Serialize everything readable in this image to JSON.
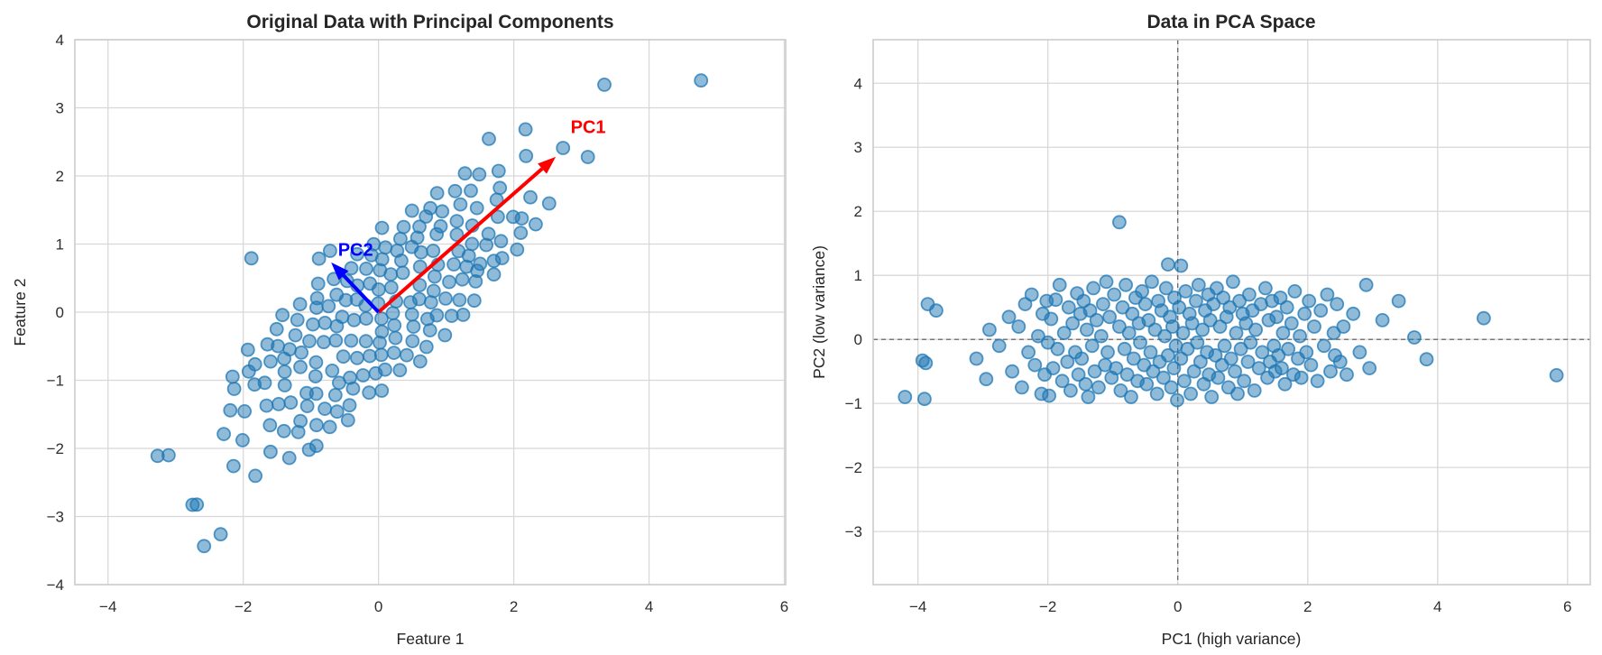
{
  "figure": {
    "background": "#ffffff",
    "point_color": "#1f77b4",
    "point_edge_color": "#1f77b4",
    "grid_color": "#d8d8d8",
    "frame_color": "#cccccc",
    "text_color": "#2e2e2e",
    "title_color": "#262626",
    "pc1_color": "#ff0000",
    "pc2_color": "#0000ff",
    "refline_color": "#555555"
  },
  "pca_basis": {
    "pc1": [
      0.755,
      0.656
    ],
    "pc2": [
      -0.656,
      0.755
    ]
  },
  "chart_data": [
    {
      "type": "scatter",
      "title": "Original Data with Principal Components",
      "xlabel": "Feature 1",
      "ylabel": "Feature 2",
      "xlim": [
        -4.49,
        6.02
      ],
      "ylim": [
        -4,
        4
      ],
      "xticks": [
        -4,
        -2,
        0,
        2,
        4,
        6
      ],
      "yticks": [
        -4,
        -3,
        -2,
        -1,
        0,
        1,
        2,
        3,
        4
      ],
      "grid": true,
      "points_source": "pca_scores_rotated_by_pca_basis",
      "arrows": [
        {
          "label": "PC1",
          "color_key": "pc1_color",
          "from": [
            0,
            0
          ],
          "to": [
            2.62,
            2.28
          ],
          "label_at": [
            3.1,
            2.72
          ]
        },
        {
          "label": "PC2",
          "color_key": "pc2_color",
          "from": [
            0,
            0
          ],
          "to": [
            -0.7,
            0.73
          ],
          "label_at": [
            -0.34,
            0.92
          ]
        }
      ]
    },
    {
      "type": "scatter",
      "title": "Data in PCA Space",
      "xlabel": "PC1 (high variance)",
      "ylabel": "PC2 (low variance)",
      "xlim": [
        -4.69,
        6.35
      ],
      "ylim": [
        -3.83,
        4.68
      ],
      "xticks": [
        -4,
        -2,
        0,
        2,
        4,
        6
      ],
      "yticks": [
        -3,
        -2,
        -1,
        0,
        1,
        2,
        3,
        4
      ],
      "grid": true,
      "refline_x": 0,
      "refline_y": 0,
      "points": [
        [
          -4.2,
          -0.9
        ],
        [
          -3.93,
          -0.33
        ],
        [
          -3.9,
          -0.93
        ],
        [
          -3.88,
          -0.37
        ],
        [
          -3.85,
          0.55
        ],
        [
          -3.72,
          0.45
        ],
        [
          -3.1,
          -0.3
        ],
        [
          -2.95,
          -0.62
        ],
        [
          -2.9,
          0.15
        ],
        [
          -2.75,
          -0.1
        ],
        [
          -2.6,
          0.35
        ],
        [
          -2.55,
          -0.5
        ],
        [
          -2.45,
          0.2
        ],
        [
          -2.4,
          -0.75
        ],
        [
          -2.35,
          0.55
        ],
        [
          -2.3,
          -0.2
        ],
        [
          -2.25,
          0.7
        ],
        [
          -2.2,
          -0.4
        ],
        [
          -2.15,
          0.05
        ],
        [
          -2.1,
          -0.85
        ],
        [
          -2.08,
          0.4
        ],
        [
          -2.05,
          -0.55
        ],
        [
          -2.02,
          0.6
        ],
        [
          -2.0,
          -0.05
        ],
        [
          -1.98,
          -0.88
        ],
        [
          -1.95,
          0.32
        ],
        [
          -1.92,
          -0.45
        ],
        [
          -1.88,
          0.62
        ],
        [
          -1.85,
          -0.15
        ],
        [
          -1.82,
          0.85
        ],
        [
          -1.78,
          -0.65
        ],
        [
          -1.75,
          0.1
        ],
        [
          -1.7,
          -0.35
        ],
        [
          -1.68,
          0.5
        ],
        [
          -1.65,
          -0.8
        ],
        [
          -1.62,
          0.25
        ],
        [
          -1.58,
          -0.2
        ],
        [
          -1.55,
          0.72
        ],
        [
          -1.53,
          -0.55
        ],
        [
          -1.5,
          0.4
        ],
        [
          -1.48,
          -0.3
        ],
        [
          -1.45,
          0.6
        ],
        [
          -1.42,
          -0.7
        ],
        [
          -1.4,
          0.15
        ],
        [
          -1.38,
          -0.9
        ],
        [
          -1.35,
          0.45
        ],
        [
          -1.32,
          -0.1
        ],
        [
          -1.3,
          0.8
        ],
        [
          -1.28,
          -0.5
        ],
        [
          -1.25,
          0.3
        ],
        [
          -1.22,
          -0.75
        ],
        [
          -1.18,
          0.05
        ],
        [
          -1.15,
          0.55
        ],
        [
          -1.12,
          -0.4
        ],
        [
          -1.1,
          0.9
        ],
        [
          -1.08,
          -0.2
        ],
        [
          -1.05,
          0.35
        ],
        [
          -1.02,
          -0.6
        ],
        [
          -0.98,
          0.7
        ],
        [
          -0.95,
          -0.45
        ],
        [
          -0.9,
          1.83
        ],
        [
          -0.9,
          0.2
        ],
        [
          -0.88,
          -0.8
        ],
        [
          -0.85,
          0.5
        ],
        [
          -0.82,
          -0.15
        ],
        [
          -0.8,
          0.85
        ],
        [
          -0.78,
          -0.55
        ],
        [
          -0.75,
          0.1
        ],
        [
          -0.72,
          -0.9
        ],
        [
          -0.7,
          0.4
        ],
        [
          -0.68,
          -0.3
        ],
        [
          -0.65,
          0.65
        ],
        [
          -0.62,
          -0.65
        ],
        [
          -0.6,
          0.25
        ],
        [
          -0.58,
          -0.05
        ],
        [
          -0.55,
          0.75
        ],
        [
          -0.52,
          -0.4
        ],
        [
          -0.5,
          0.55
        ],
        [
          -0.48,
          -0.7
        ],
        [
          -0.45,
          0.3
        ],
        [
          -0.42,
          -0.2
        ],
        [
          -0.4,
          0.9
        ],
        [
          -0.38,
          -0.5
        ],
        [
          -0.35,
          0.15
        ],
        [
          -0.32,
          -0.85
        ],
        [
          -0.3,
          0.6
        ],
        [
          -0.28,
          -0.35
        ],
        [
          -0.25,
          0.45
        ],
        [
          -0.22,
          -0.6
        ],
        [
          -0.2,
          0.05
        ],
        [
          -0.18,
          0.8
        ],
        [
          -0.15,
          1.17
        ],
        [
          -0.15,
          -0.25
        ],
        [
          -0.12,
          0.35
        ],
        [
          -0.1,
          -0.75
        ],
        [
          -0.08,
          0.2
        ],
        [
          -0.06,
          -0.45
        ],
        [
          -0.05,
          0.65
        ],
        [
          -0.03,
          -0.1
        ],
        [
          -0.01,
          -0.95
        ],
        [
          0.02,
          0.5
        ],
        [
          0.05,
          1.15
        ],
        [
          0.05,
          -0.3
        ],
        [
          0.08,
          0.1
        ],
        [
          0.1,
          -0.65
        ],
        [
          0.12,
          0.75
        ],
        [
          0.15,
          -0.15
        ],
        [
          0.18,
          0.4
        ],
        [
          0.2,
          -0.85
        ],
        [
          0.22,
          0.25
        ],
        [
          0.25,
          -0.5
        ],
        [
          0.28,
          0.6
        ],
        [
          0.3,
          -0.05
        ],
        [
          0.32,
          0.85
        ],
        [
          0.35,
          -0.35
        ],
        [
          0.38,
          0.15
        ],
        [
          0.4,
          -0.7
        ],
        [
          0.42,
          0.45
        ],
        [
          0.45,
          -0.2
        ],
        [
          0.47,
          0.7
        ],
        [
          0.48,
          -0.55
        ],
        [
          0.5,
          0.3
        ],
        [
          0.52,
          -0.9
        ],
        [
          0.55,
          0.55
        ],
        [
          0.58,
          -0.25
        ],
        [
          0.6,
          0.8
        ],
        [
          0.62,
          -0.6
        ],
        [
          0.65,
          0.2
        ],
        [
          0.68,
          -0.4
        ],
        [
          0.7,
          0.65
        ],
        [
          0.72,
          -0.1
        ],
        [
          0.75,
          0.35
        ],
        [
          0.78,
          -0.75
        ],
        [
          0.8,
          0.5
        ],
        [
          0.82,
          -0.3
        ],
        [
          0.85,
          0.9
        ],
        [
          0.88,
          -0.5
        ],
        [
          0.9,
          0.1
        ],
        [
          0.92,
          -0.85
        ],
        [
          0.95,
          0.6
        ],
        [
          0.97,
          -0.15
        ],
        [
          1.0,
          0.4
        ],
        [
          1.02,
          -0.65
        ],
        [
          1.05,
          0.25
        ],
        [
          1.08,
          -0.35
        ],
        [
          1.1,
          0.7
        ],
        [
          1.12,
          -0.05
        ],
        [
          1.15,
          0.45
        ],
        [
          1.18,
          -0.8
        ],
        [
          1.2,
          0.15
        ],
        [
          1.25,
          -0.45
        ],
        [
          1.28,
          0.55
        ],
        [
          1.3,
          -0.2
        ],
        [
          1.35,
          0.8
        ],
        [
          1.38,
          -0.6
        ],
        [
          1.4,
          0.3
        ],
        [
          1.42,
          -0.35
        ],
        [
          1.45,
          0.6
        ],
        [
          1.48,
          -0.1
        ],
        [
          1.5,
          -0.5
        ],
        [
          1.52,
          0.35
        ],
        [
          1.55,
          -0.25
        ],
        [
          1.58,
          0.65
        ],
        [
          1.6,
          -0.45
        ],
        [
          1.62,
          0.1
        ],
        [
          1.65,
          -0.7
        ],
        [
          1.68,
          0.5
        ],
        [
          1.7,
          -0.15
        ],
        [
          1.75,
          0.25
        ],
        [
          1.78,
          -0.55
        ],
        [
          1.8,
          0.75
        ],
        [
          1.85,
          -0.3
        ],
        [
          1.88,
          0.05
        ],
        [
          1.9,
          -0.6
        ],
        [
          1.95,
          0.4
        ],
        [
          1.98,
          -0.2
        ],
        [
          2.02,
          0.6
        ],
        [
          2.05,
          -0.4
        ],
        [
          2.1,
          0.2
        ],
        [
          2.15,
          -0.65
        ],
        [
          2.2,
          0.45
        ],
        [
          2.25,
          -0.1
        ],
        [
          2.3,
          0.7
        ],
        [
          2.35,
          -0.5
        ],
        [
          2.4,
          0.1
        ],
        [
          2.42,
          -0.25
        ],
        [
          2.45,
          0.55
        ],
        [
          2.5,
          -0.35
        ],
        [
          2.55,
          0.2
        ],
        [
          2.6,
          -0.55
        ],
        [
          2.7,
          0.4
        ],
        [
          2.8,
          -0.2
        ],
        [
          2.9,
          0.85
        ],
        [
          2.95,
          -0.45
        ],
        [
          3.15,
          0.3
        ],
        [
          3.4,
          0.6
        ],
        [
          3.64,
          0.03
        ],
        [
          3.83,
          -0.31
        ],
        [
          4.71,
          0.33
        ],
        [
          5.83,
          -0.56
        ]
      ]
    }
  ]
}
